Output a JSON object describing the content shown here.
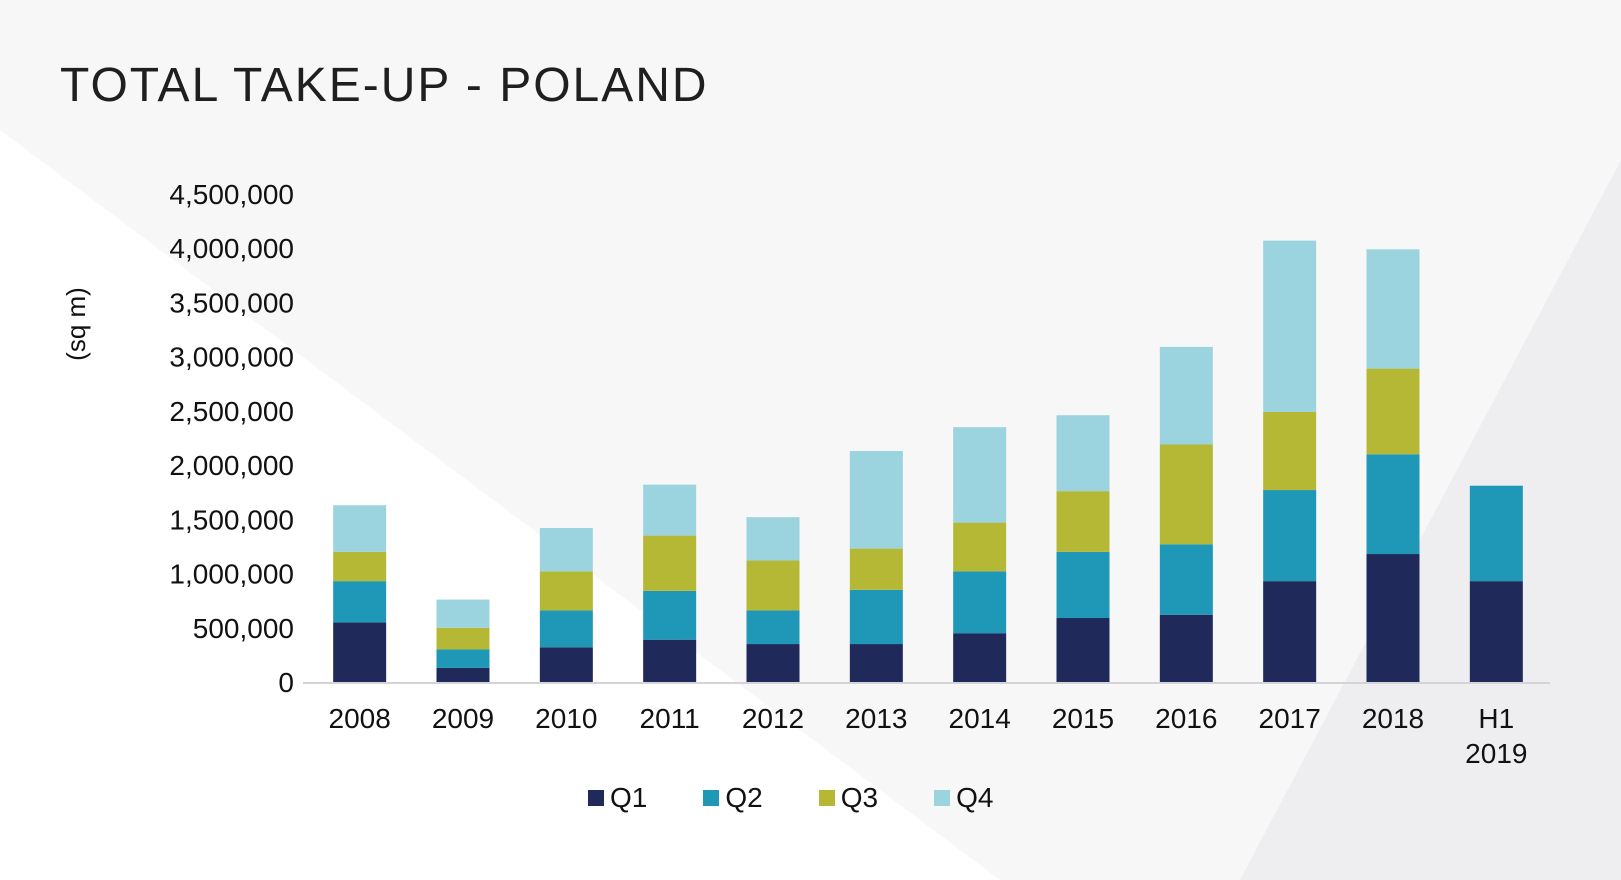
{
  "title": "TOTAL TAKE-UP - POLAND",
  "chart_data": {
    "type": "bar",
    "stacked": true,
    "title": "TOTAL TAKE-UP - POLAND",
    "ylabel": "(sq m)",
    "xlabel": "",
    "ylim": [
      0,
      4500000
    ],
    "yticks": [
      "0",
      "500,000",
      "1,000,000",
      "1,500,000",
      "2,000,000",
      "2,500,000",
      "3,000,000",
      "3,500,000",
      "4,000,000",
      "4,500,000"
    ],
    "ytick_values": [
      0,
      500000,
      1000000,
      1500000,
      2000000,
      2500000,
      3000000,
      3500000,
      4000000,
      4500000
    ],
    "categories": [
      "2008",
      "2009",
      "2010",
      "2011",
      "2012",
      "2013",
      "2014",
      "2015",
      "2016",
      "2017",
      "2018",
      "H1 2019"
    ],
    "category_lines": [
      [
        "2008"
      ],
      [
        "2009"
      ],
      [
        "2010"
      ],
      [
        "2011"
      ],
      [
        "2012"
      ],
      [
        "2013"
      ],
      [
        "2014"
      ],
      [
        "2015"
      ],
      [
        "2016"
      ],
      [
        "2017"
      ],
      [
        "2018"
      ],
      [
        "H1",
        "2019"
      ]
    ],
    "series": [
      {
        "name": "Q1",
        "color": "#1f2a5b",
        "values": [
          550000,
          130000,
          320000,
          390000,
          350000,
          350000,
          450000,
          590000,
          620000,
          930000,
          1180000,
          930000
        ]
      },
      {
        "name": "Q2",
        "color": "#1f97b6",
        "values": [
          380000,
          170000,
          340000,
          450000,
          310000,
          500000,
          570000,
          610000,
          650000,
          840000,
          920000,
          880000
        ]
      },
      {
        "name": "Q3",
        "color": "#b5b834",
        "values": [
          270000,
          200000,
          360000,
          510000,
          460000,
          380000,
          450000,
          560000,
          920000,
          720000,
          790000,
          0
        ]
      },
      {
        "name": "Q4",
        "color": "#9bd3df",
        "values": [
          430000,
          260000,
          400000,
          470000,
          400000,
          900000,
          880000,
          700000,
          900000,
          1580000,
          1100000,
          0
        ]
      }
    ],
    "grid": false,
    "legend_position": "bottom"
  }
}
